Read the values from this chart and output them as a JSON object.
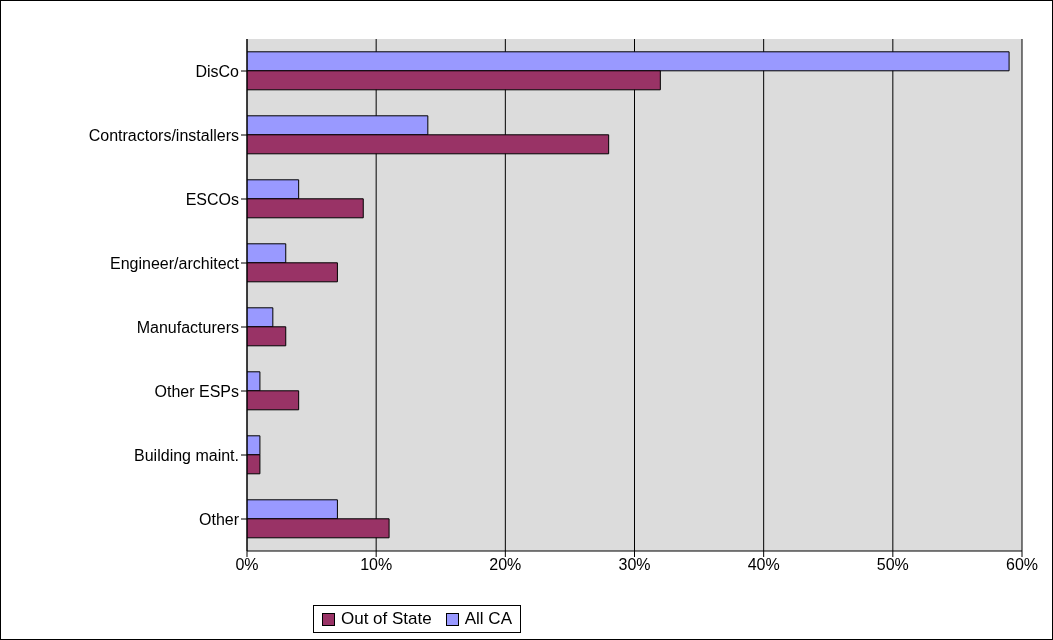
{
  "chart_data": {
    "type": "bar",
    "orientation": "horizontal",
    "categories": [
      "DisCo",
      "Contractors/installers",
      "ESCOs",
      "Engineer/architect",
      "Manufacturers",
      "Other ESPs",
      "Building maint.",
      "Other"
    ],
    "series": [
      {
        "name": "All CA",
        "color": "#9999ff",
        "values": [
          59,
          14,
          4,
          3,
          2,
          1,
          1,
          7
        ]
      },
      {
        "name": "Out of State",
        "color": "#993366",
        "values": [
          32,
          28,
          9,
          7,
          3,
          4,
          1,
          11
        ]
      }
    ],
    "xlim": [
      0,
      60
    ],
    "xticks": [
      {
        "value": 0,
        "label": "0%"
      },
      {
        "value": 10,
        "label": "10%"
      },
      {
        "value": 20,
        "label": "20%"
      },
      {
        "value": 30,
        "label": "30%"
      },
      {
        "value": 40,
        "label": "40%"
      },
      {
        "value": 50,
        "label": "50%"
      },
      {
        "value": 60,
        "label": "60%"
      }
    ],
    "grid": "x",
    "legend": "bottom"
  }
}
